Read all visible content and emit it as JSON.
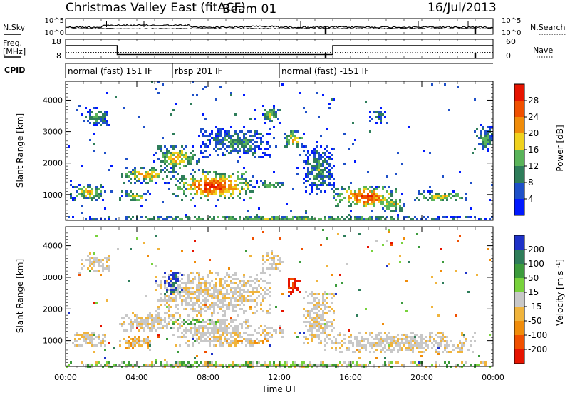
{
  "header": {
    "station": "Christmas Valley East (fitACF)",
    "beam": "Beam 01",
    "date": "16/Jul/2013"
  },
  "strips": {
    "nsky_label": "N.Sky",
    "nsky_ticks": [
      "10^5",
      "10^0"
    ],
    "nsearch_label": "N.Search",
    "nsearch_ticks": [
      "10^5",
      "10^0"
    ],
    "freq_label_line1": "Freq.",
    "freq_label_line2": "[MHz]",
    "freq_ticks": [
      "18",
      "8"
    ],
    "nave_label": "Nave",
    "nave_ticks": [
      "60",
      "0"
    ],
    "cpid_label": "CPID",
    "cpid_segments": [
      {
        "label": "normal (fast) 151 IF",
        "start_h": 0.0,
        "end_h": 6.0
      },
      {
        "label": "rbsp 201 IF",
        "start_h": 6.0,
        "end_h": 12.0
      },
      {
        "label": "normal (fast) -151 IF",
        "start_h": 12.0,
        "end_h": 24.0
      }
    ],
    "freq_steps": [
      {
        "start_h": 0.0,
        "end_h": 2.9,
        "mhz": 15.5
      },
      {
        "start_h": 2.9,
        "end_h": 15.0,
        "mhz": 10.3
      },
      {
        "start_h": 15.0,
        "end_h": 24.0,
        "mhz": 15.5
      }
    ],
    "freq_dotted_mhz": 11.5
  },
  "chart_data": [
    {
      "type": "heatmap",
      "name": "power-panel",
      "ylabel": "Slant Range [km]",
      "xlabel": "Time UT",
      "xlim": [
        0,
        24
      ],
      "ylim": [
        180,
        4600
      ],
      "x_ticks": [
        "00:00",
        "04:00",
        "08:00",
        "12:00",
        "16:00",
        "20:00",
        "00:00"
      ],
      "y_ticks": [
        1000,
        2000,
        3000,
        4000
      ],
      "colorbar": {
        "label": "Power [dB]",
        "ticks": [
          "4",
          "8",
          "12",
          "16",
          "20",
          "24",
          "28"
        ],
        "colors": [
          "#0019ff",
          "#1e50c8",
          "#2e7d5a",
          "#5ab45a",
          "#f0d21e",
          "#f08c0a",
          "#f05000",
          "#e61400"
        ]
      },
      "regions": [
        {
          "t": [
            0.2,
            2.2
          ],
          "r": [
            850,
            1350
          ],
          "intensity": 0.55
        },
        {
          "t": [
            3.0,
            4.7
          ],
          "r": [
            800,
            1150
          ],
          "intensity": 0.55
        },
        {
          "t": [
            3.0,
            6.0
          ],
          "r": [
            1400,
            1900
          ],
          "intensity": 0.6
        },
        {
          "t": [
            6.0,
            10.5
          ],
          "r": [
            850,
            1750
          ],
          "intensity": 0.85
        },
        {
          "t": [
            10.5,
            12.2
          ],
          "r": [
            1200,
            1500
          ],
          "intensity": 0.45
        },
        {
          "t": [
            5.0,
            7.5
          ],
          "r": [
            1800,
            2600
          ],
          "intensity": 0.6
        },
        {
          "t": [
            7.5,
            11.5
          ],
          "r": [
            2200,
            3200
          ],
          "intensity": 0.35
        },
        {
          "t": [
            11.0,
            12.0
          ],
          "r": [
            3200,
            3900
          ],
          "intensity": 0.45
        },
        {
          "t": [
            0.8,
            2.5
          ],
          "r": [
            3200,
            3800
          ],
          "intensity": 0.35
        },
        {
          "t": [
            12.2,
            13.3
          ],
          "r": [
            2500,
            3100
          ],
          "intensity": 0.6
        },
        {
          "t": [
            13.3,
            15.0
          ],
          "r": [
            1000,
            2600
          ],
          "intensity": 0.35
        },
        {
          "t": [
            15.0,
            18.5
          ],
          "r": [
            600,
            1300
          ],
          "intensity": 0.85
        },
        {
          "t": [
            17.5,
            19.0
          ],
          "r": [
            500,
            900
          ],
          "intensity": 0.55
        },
        {
          "t": [
            19.5,
            22.5
          ],
          "r": [
            800,
            1150
          ],
          "intensity": 0.55
        },
        {
          "t": [
            17.0,
            18.0
          ],
          "r": [
            3300,
            3800
          ],
          "intensity": 0.35
        },
        {
          "t": [
            23.0,
            24.0
          ],
          "r": [
            2400,
            3200
          ],
          "intensity": 0.4
        },
        {
          "t": [
            0.0,
            24.0
          ],
          "r": [
            180,
            360
          ],
          "intensity": 0.45
        }
      ]
    },
    {
      "type": "heatmap",
      "name": "velocity-panel",
      "ylabel": "Slant Range [km]",
      "xlabel": "Time UT",
      "xlim": [
        0,
        24
      ],
      "ylim": [
        180,
        4600
      ],
      "x_ticks": [
        "00:00",
        "04:00",
        "08:00",
        "12:00",
        "16:00",
        "20:00",
        "00:00"
      ],
      "y_ticks": [
        1000,
        2000,
        3000,
        4000
      ],
      "colorbar": {
        "label": "Velocity [m s^-1]",
        "ticks": [
          "200",
          "100",
          "50",
          "15",
          "-15",
          "-50",
          "-100",
          "-200"
        ],
        "colors": [
          "#1e32c8",
          "#2e7d5a",
          "#3c9b3c",
          "#78d23c",
          "#c8c8c8",
          "#f0b43c",
          "#f08c0a",
          "#f05000",
          "#e61400"
        ]
      },
      "regions": [
        {
          "t": [
            0.2,
            2.2
          ],
          "r": [
            850,
            1350
          ],
          "class": "grey"
        },
        {
          "t": [
            3.0,
            6.0
          ],
          "r": [
            1300,
            1900
          ],
          "class": "grey"
        },
        {
          "t": [
            6.0,
            10.5
          ],
          "r": [
            850,
            1800
          ],
          "class": "grey"
        },
        {
          "t": [
            10.5,
            12.2
          ],
          "r": [
            1100,
            1500
          ],
          "class": "grey"
        },
        {
          "t": [
            5.0,
            11.5
          ],
          "r": [
            1800,
            3200
          ],
          "class": "grey"
        },
        {
          "t": [
            11.0,
            12.0
          ],
          "r": [
            3200,
            3900
          ],
          "class": "grey"
        },
        {
          "t": [
            0.8,
            2.5
          ],
          "r": [
            3200,
            3800
          ],
          "class": "grey"
        },
        {
          "t": [
            5.5,
            6.5
          ],
          "r": [
            2400,
            3200
          ],
          "class": "blue"
        },
        {
          "t": [
            12.4,
            13.1
          ],
          "r": [
            2500,
            3000
          ],
          "class": "red"
        },
        {
          "t": [
            13.3,
            15.0
          ],
          "r": [
            900,
            2600
          ],
          "class": "grey"
        },
        {
          "t": [
            14.5,
            23.0
          ],
          "r": [
            650,
            1300
          ],
          "class": "grey"
        },
        {
          "t": [
            6.0,
            9.0
          ],
          "r": [
            1550,
            1750
          ],
          "class": "green"
        },
        {
          "t": [
            3.0,
            4.8
          ],
          "r": [
            750,
            1200
          ],
          "class": "orange"
        },
        {
          "t": [
            8.0,
            11.5
          ],
          "r": [
            900,
            1100
          ],
          "class": "orange"
        },
        {
          "t": [
            0.0,
            24.0
          ],
          "r": [
            180,
            360
          ],
          "class": "ground"
        }
      ]
    }
  ]
}
